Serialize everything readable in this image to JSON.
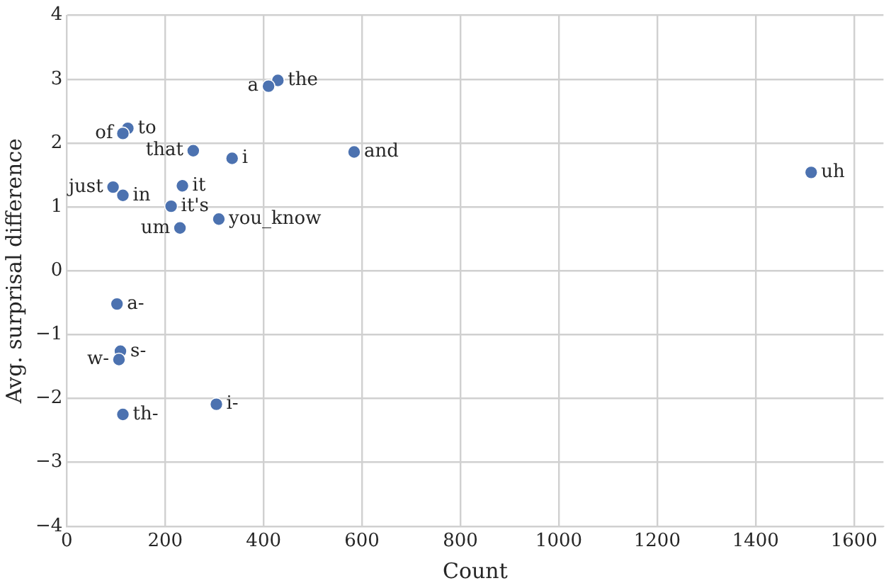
{
  "chart_data": {
    "type": "scatter",
    "xlabel": "Count",
    "ylabel": "Avg. surprisal difference",
    "x": [
      429,
      410,
      124,
      114,
      257,
      336,
      584,
      94,
      114,
      235,
      212,
      230,
      309,
      1513,
      102,
      109,
      106,
      114,
      304
    ],
    "series": [
      {
        "color": "#4c72b0",
        "values": [
          2.98,
          2.89,
          2.23,
          2.15,
          1.88,
          1.76,
          1.86,
          1.31,
          1.18,
          1.33,
          1.01,
          0.67,
          0.81,
          1.54,
          -0.52,
          -1.26,
          -1.39,
          -2.25,
          -2.09
        ]
      }
    ],
    "value_labels": [
      "the",
      "a",
      "to",
      "of",
      "that",
      "i",
      "and",
      "just",
      "in",
      "it",
      "it's",
      "um",
      "you_know",
      "uh",
      "a-",
      "s-",
      "w-",
      "th-",
      "i-"
    ],
    "xlim": [
      0,
      1660
    ],
    "xticks": [
      0,
      200,
      400,
      600,
      800,
      1000,
      1200,
      1400,
      1600
    ],
    "ylim": [
      -4,
      4
    ],
    "yticks": [
      -4,
      -3,
      -2,
      -1,
      0,
      1,
      2,
      3,
      4
    ],
    "grid": true,
    "marker": "circle",
    "legend": false
  }
}
